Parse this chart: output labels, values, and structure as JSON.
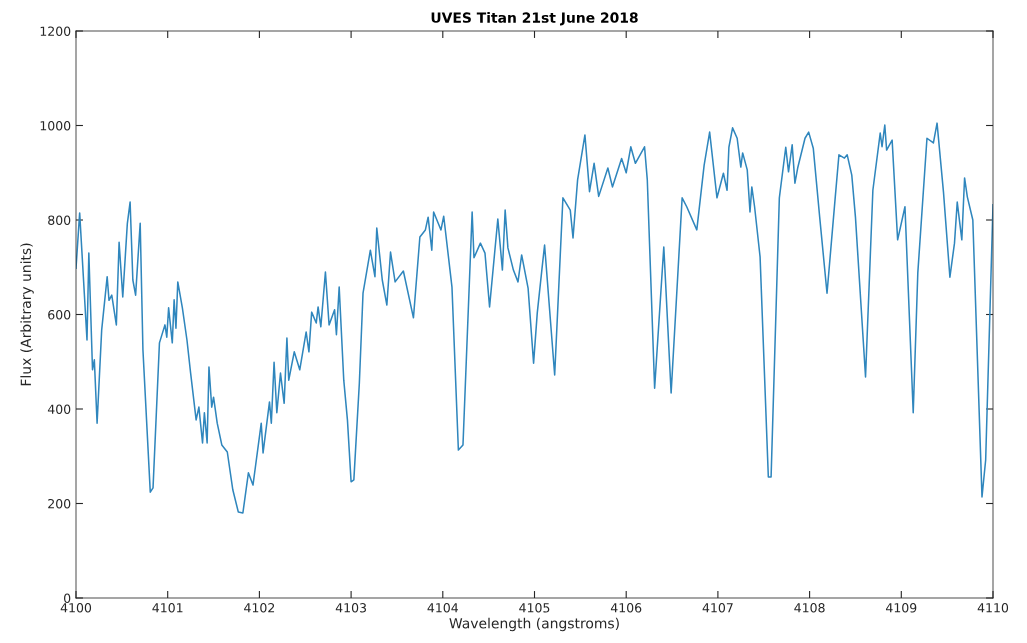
{
  "chart_data": {
    "type": "line",
    "title": "UVES Titan 21st June 2018",
    "xlabel": "Wavelength (angstroms)",
    "ylabel": "Flux (Arbitrary units)",
    "xlim": [
      4100,
      4110
    ],
    "xticks": [
      4100,
      4101,
      4102,
      4103,
      4104,
      4105,
      4106,
      4107,
      4108,
      4109,
      4110
    ],
    "ylim": [
      0,
      1200
    ],
    "yticks": [
      0,
      200,
      400,
      600,
      800,
      1000,
      1200
    ],
    "grid": false,
    "marker": "none",
    "line_style": "solid",
    "series": [
      {
        "color": "#2f86bd",
        "x": [
          4100.0,
          4100.04,
          4100.12,
          4100.14,
          4100.18,
          4100.2,
          4100.23,
          4100.28,
          4100.34,
          4100.36,
          4100.39,
          4100.44,
          4100.47,
          4100.51,
          4100.56,
          4100.59,
          4100.62,
          4100.65,
          4100.7,
          4100.73,
          4100.81,
          4100.84,
          4100.91,
          4100.97,
          4100.99,
          4101.01,
          4101.05,
          4101.07,
          4101.09,
          4101.11,
          4101.16,
          4101.21,
          4101.25,
          4101.31,
          4101.34,
          4101.38,
          4101.4,
          4101.43,
          4101.45,
          4101.48,
          4101.5,
          4101.54,
          4101.59,
          4101.65,
          4101.71,
          4101.77,
          4101.82,
          4101.88,
          4101.93,
          4102.02,
          4102.04,
          4102.11,
          4102.13,
          4102.16,
          4102.19,
          4102.23,
          4102.27,
          4102.3,
          4102.32,
          4102.38,
          4102.44,
          4102.51,
          4102.54,
          4102.57,
          4102.62,
          4102.64,
          4102.67,
          4102.72,
          4102.76,
          4102.82,
          4102.84,
          4102.87,
          4102.92,
          4102.96,
          4103.0,
          4103.03,
          4103.09,
          4103.13,
          4103.21,
          4103.26,
          4103.28,
          4103.34,
          4103.39,
          4103.43,
          4103.48,
          4103.57,
          4103.68,
          4103.75,
          4103.81,
          4103.84,
          4103.88,
          4103.9,
          4103.98,
          4104.01,
          4104.1,
          4104.17,
          4104.22,
          4104.32,
          4104.34,
          4104.41,
          4104.46,
          4104.51,
          4104.6,
          4104.65,
          4104.68,
          4104.71,
          4104.77,
          4104.82,
          4104.86,
          4104.93,
          4104.99,
          4105.03,
          4105.08,
          4105.11,
          4105.22,
          4105.31,
          4105.39,
          4105.42,
          4105.47,
          4105.55,
          4105.6,
          4105.65,
          4105.7,
          4105.8,
          4105.85,
          4105.95,
          4106.0,
          4106.05,
          4106.1,
          4106.2,
          4106.23,
          4106.31,
          4106.41,
          4106.49,
          4106.61,
          4106.66,
          4106.77,
          4106.85,
          4106.91,
          4106.99,
          4107.06,
          4107.1,
          4107.12,
          4107.16,
          4107.21,
          4107.25,
          4107.27,
          4107.32,
          4107.35,
          4107.37,
          4107.4,
          4107.46,
          4107.55,
          4107.58,
          4107.67,
          4107.74,
          4107.77,
          4107.81,
          4107.84,
          4107.87,
          4107.95,
          4107.99,
          4108.04,
          4108.11,
          4108.19,
          4108.28,
          4108.32,
          4108.38,
          4108.41,
          4108.46,
          4108.5,
          4108.61,
          4108.69,
          4108.77,
          4108.79,
          4108.82,
          4108.84,
          4108.9,
          4108.96,
          4109.04,
          4109.13,
          4109.18,
          4109.28,
          4109.35,
          4109.39,
          4109.46,
          4109.53,
          4109.58,
          4109.61,
          4109.66,
          4109.69,
          4109.72,
          4109.78,
          4109.88,
          4109.92,
          4110.0
        ],
        "values": [
          698,
          815,
          546,
          730,
          483,
          504,
          370,
          567,
          680,
          630,
          641,
          578,
          753,
          637,
          793,
          838,
          673,
          641,
          793,
          525,
          224,
          233,
          540,
          578,
          552,
          614,
          540,
          631,
          571,
          669,
          614,
          546,
          476,
          377,
          404,
          328,
          392,
          328,
          489,
          404,
          425,
          370,
          324,
          309,
          229,
          182,
          180,
          265,
          239,
          370,
          307,
          415,
          370,
          499,
          392,
          476,
          412,
          550,
          461,
          521,
          483,
          563,
          521,
          605,
          582,
          616,
          574,
          690,
          578,
          610,
          557,
          658,
          461,
          377,
          246,
          250,
          455,
          645,
          736,
          680,
          783,
          673,
          620,
          732,
          669,
          692,
          593,
          764,
          779,
          806,
          736,
          817,
          779,
          808,
          658,
          313,
          324,
          817,
          720,
          751,
          730,
          616,
          802,
          694,
          821,
          741,
          694,
          669,
          726,
          656,
          497,
          603,
          694,
          747,
          472,
          847,
          821,
          762,
          885,
          980,
          860,
          920,
          850,
          910,
          870,
          930,
          900,
          955,
          920,
          955,
          885,
          444,
          743,
          434,
          847,
          828,
          779,
          916,
          986,
          847,
          899,
          863,
          954,
          995,
          973,
          912,
          942,
          906,
          817,
          870,
          828,
          722,
          256,
          256,
          847,
          954,
          902,
          959,
          878,
          910,
          973,
          986,
          952,
          806,
          645,
          849,
          938,
          931,
          938,
          895,
          806,
          468,
          863,
          984,
          955,
          1001,
          948,
          969,
          758,
          828,
          392,
          688,
          973,
          963,
          1005,
          859,
          679,
          751,
          838,
          758,
          889,
          849,
          800,
          214,
          292,
          832
        ]
      }
    ]
  }
}
